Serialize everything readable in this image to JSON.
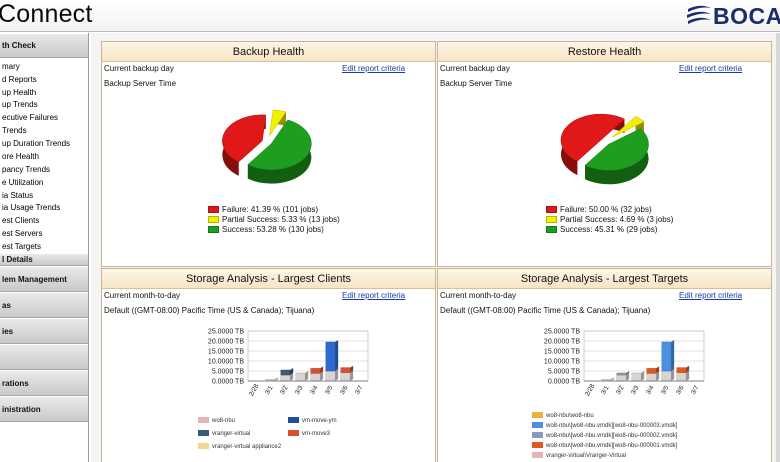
{
  "header": {
    "title": "Connect",
    "logo_text": "BOCA"
  },
  "sidebar": {
    "section_health": "th Check",
    "items": [
      "mary",
      "d Reports",
      "up Health",
      "up Trends",
      "ecutive Failures",
      "Trends",
      "up Duration Trends",
      "ore Health",
      "pancy Trends",
      "e Utilization",
      "ia Status",
      "ia Usage Trends",
      "est Clients",
      "est Servers",
      "est Targets"
    ],
    "section_details": "l Details",
    "sections": [
      "lem Management",
      "as",
      "ies",
      "",
      "rations",
      "inistration"
    ]
  },
  "backup_health": {
    "title": "Backup Health",
    "period": "Current backup day",
    "server_time": "Backup Server Time",
    "edit_link": "Edit report criteria",
    "legend": [
      {
        "label": "Failure: 41.39 % (101 jobs)",
        "color": "#e01818"
      },
      {
        "label": "Partial Success: 5.33 % (13 jobs)",
        "color": "#f0f000"
      },
      {
        "label": "Success: 53.28 % (130 jobs)",
        "color": "#1e9e1e"
      }
    ]
  },
  "restore_health": {
    "title": "Restore Health",
    "period": "Current backup day",
    "server_time": "Backup Server Time",
    "edit_link": "Edit report criteria",
    "legend": [
      {
        "label": "Failure: 50.00 % (32 jobs)",
        "color": "#e01818"
      },
      {
        "label": "Partial Success: 4.69 % (3 jobs)",
        "color": "#f0f000"
      },
      {
        "label": "Success: 45.31 % (29 jobs)",
        "color": "#1e9e1e"
      }
    ]
  },
  "storage_clients": {
    "title": "Storage Analysis - Largest Clients",
    "period": "Current month-to-day",
    "timezone": "Default ((GMT-08:00) Pacific Time (US & Canada); Tijuana)",
    "edit_link": "Edit report criteria",
    "legend": [
      {
        "label": "wo8-nbu",
        "color": "#e8b4b0"
      },
      {
        "label": "vm-move-ym",
        "color": "#1f4e9a"
      },
      {
        "label": "vranger-virtual",
        "color": "#3a5a7a"
      },
      {
        "label": "vm-move3",
        "color": "#d95030"
      },
      {
        "label": "vranger-virtual appliance2",
        "color": "#f0d890"
      }
    ]
  },
  "storage_targets": {
    "title": "Storage Analysis - Largest Targets",
    "period": "Current month-to-day",
    "timezone": "Default ((GMT-08:00) Pacific Time (US & Canada); Tijuana)",
    "edit_link": "Edit report criteria",
    "legend": [
      {
        "label": "wo8-nbu\\wo8-nbu",
        "color": "#f0b040"
      },
      {
        "label": "wo8-nbu\\[wo8-nbu.vmdk][wo8-nbu-000003.vmdk]",
        "color": "#4a90e0"
      },
      {
        "label": "wo8-nbu\\[wo8-nbu.vmdk][wo8-nbu-000002.vmdk]",
        "color": "#8a9ab8"
      },
      {
        "label": "wo8-nbu\\[wo8-nbu.vmdk][wo8-nbu-000001.vmdk]",
        "color": "#e05a20"
      },
      {
        "label": "vranger-virtual\\Vranger-Virtual",
        "color": "#e8b4b0"
      }
    ]
  },
  "chart_data": [
    {
      "type": "pie",
      "title": "Backup Health",
      "categories": [
        "Failure",
        "Partial Success",
        "Success"
      ],
      "values": [
        41.39,
        5.33,
        53.28
      ],
      "jobs": [
        101,
        13,
        130
      ],
      "colors": [
        "#e01818",
        "#f0f000",
        "#1e9e1e"
      ]
    },
    {
      "type": "pie",
      "title": "Restore Health",
      "categories": [
        "Failure",
        "Partial Success",
        "Success"
      ],
      "values": [
        50.0,
        4.69,
        45.31
      ],
      "jobs": [
        32,
        3,
        29
      ],
      "colors": [
        "#e01818",
        "#f0f000",
        "#1e9e1e"
      ]
    },
    {
      "type": "bar",
      "title": "Storage Analysis - Largest Clients",
      "categories": [
        "2/28",
        "3/1",
        "3/2",
        "3/3",
        "3/4",
        "3/5",
        "3/6",
        "3/7"
      ],
      "y_ticks": [
        "25.0000 TB",
        "20.0000 TB",
        "15.0000 TB",
        "10.0000 TB",
        "5.0000 TB",
        "0.0000 TB"
      ],
      "ylim": [
        0,
        25
      ],
      "series": [
        {
          "name": "wo8-nbu",
          "color": "#d9d4d4",
          "values": [
            0,
            0.8,
            3.0,
            4.0,
            3.8,
            5.0,
            4.2,
            0
          ]
        },
        {
          "name": "vm-move-ym",
          "color": "#2f6ad0",
          "values": [
            0,
            0,
            0,
            0,
            0,
            14.5,
            0,
            0
          ]
        },
        {
          "name": "vm-move3",
          "color": "#d95030",
          "values": [
            0,
            0,
            0,
            0,
            2.5,
            0,
            2.5,
            0
          ]
        },
        {
          "name": "vranger-virtual",
          "color": "#3a5a7a",
          "values": [
            0,
            0,
            2.5,
            0,
            0,
            0,
            0,
            0
          ]
        }
      ]
    },
    {
      "type": "bar",
      "title": "Storage Analysis - Largest Targets",
      "categories": [
        "2/28",
        "3/1",
        "3/2",
        "3/3",
        "3/4",
        "3/5",
        "3/6",
        "3/7"
      ],
      "y_ticks": [
        "25.0000 TB",
        "20.0000 TB",
        "15.0000 TB",
        "10.0000 TB",
        "5.0000 TB",
        "0.0000 TB"
      ],
      "ylim": [
        0,
        25
      ],
      "series": [
        {
          "name": "vranger-virtual\\Vranger-Virtual",
          "color": "#d9d4d4",
          "values": [
            0,
            0.8,
            3.0,
            4.0,
            3.8,
            5.0,
            4.2,
            0
          ]
        },
        {
          "name": "wo8-nbu\\[wo8-nbu.vmdk][wo8-nbu-000003.vmdk]",
          "color": "#4a90e0",
          "values": [
            0,
            0,
            0,
            0,
            0,
            14.5,
            0,
            0
          ]
        },
        {
          "name": "wo8-nbu\\[wo8-nbu.vmdk][wo8-nbu-000001.vmdk]",
          "color": "#e05a20",
          "values": [
            0,
            0,
            0,
            0,
            2.5,
            0,
            2.5,
            0
          ]
        },
        {
          "name": "wo8-nbu\\[wo8-nbu.vmdk][wo8-nbu-000002.vmdk]",
          "color": "#8a9ab8",
          "values": [
            0,
            0,
            1.0,
            0,
            0,
            0,
            0,
            0
          ]
        }
      ]
    }
  ]
}
